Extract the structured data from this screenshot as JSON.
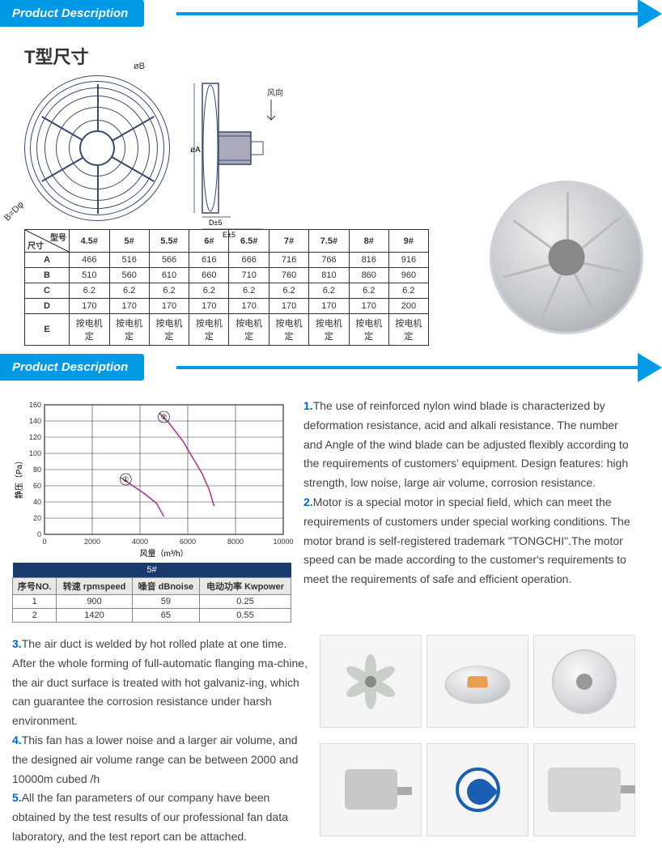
{
  "header_label": "Product Description",
  "t_size_title": "T型尺寸",
  "wind_direction_label": "风向",
  "dim_annotations": {
    "top": "øB",
    "right": "øA",
    "bottom_left": "B=Dφ",
    "d_label": "D±5",
    "e_label": "E±5"
  },
  "dim_table": {
    "corner_top": "型号",
    "corner_left": "尺寸",
    "cols": [
      "4.5#",
      "5#",
      "5.5#",
      "6#",
      "6.5#",
      "7#",
      "7.5#",
      "8#",
      "9#"
    ],
    "rows": [
      {
        "label": "A",
        "vals": [
          "466",
          "516",
          "566",
          "616",
          "666",
          "716",
          "766",
          "816",
          "916"
        ]
      },
      {
        "label": "B",
        "vals": [
          "510",
          "560",
          "610",
          "660",
          "710",
          "760",
          "810",
          "860",
          "960"
        ]
      },
      {
        "label": "C",
        "vals": [
          "6.2",
          "6.2",
          "6.2",
          "6.2",
          "6.2",
          "6.2",
          "6.2",
          "6.2",
          "6.2"
        ]
      },
      {
        "label": "D",
        "vals": [
          "170",
          "170",
          "170",
          "170",
          "170",
          "170",
          "170",
          "170",
          "200"
        ]
      },
      {
        "label": "E",
        "vals": [
          "按电机定",
          "按电机定",
          "按电机定",
          "按电机定",
          "按电机定",
          "按电机定",
          "按电机定",
          "按电机定",
          "按电机定"
        ]
      }
    ]
  },
  "chart": {
    "y_label": "静压（Pa）",
    "x_label": "风量（m³/h）",
    "y_ticks": [
      "0",
      "20",
      "40",
      "60",
      "80",
      "100",
      "120",
      "140",
      "160"
    ],
    "x_ticks": [
      "0",
      "2000",
      "4000",
      "6000",
      "8000",
      "10000"
    ],
    "ylim": [
      0,
      160
    ],
    "xlim": [
      0,
      10000
    ],
    "curve1_label": "①",
    "curve2_label": "②",
    "curve1": [
      [
        3200,
        70
      ],
      [
        3600,
        62
      ],
      [
        4200,
        50
      ],
      [
        4700,
        38
      ],
      [
        5000,
        22
      ]
    ],
    "curve2": [
      [
        4800,
        150
      ],
      [
        5200,
        138
      ],
      [
        5800,
        115
      ],
      [
        6200,
        95
      ],
      [
        6600,
        75
      ],
      [
        6900,
        55
      ],
      [
        7100,
        35
      ]
    ],
    "line_color": "#b03090",
    "grid_color": "#333333",
    "bg": "#ffffff"
  },
  "perf_table": {
    "title": "5#",
    "headers": [
      "序号NO.",
      "转速 rpmspeed",
      "噪音 dBnoise",
      "电动功率 Kwpower"
    ],
    "rows": [
      [
        "1",
        "900",
        "59",
        "0.25"
      ],
      [
        "2",
        "1420",
        "65",
        "0.55"
      ]
    ]
  },
  "desc": {
    "p1_num": "1.",
    "p1": "The use of reinforced nylon wind blade is characterized by deformation resistance, acid and alkali resistance. The number and Angle of the wind blade can be adjusted flexibly according to the requirements of customers' equipment. Design features: high strength, low noise, large air volume, corrosion resistance.",
    "p2_num": "2.",
    "p2": "Motor is a special motor in special field, which can meet the requirements of customers under special working conditions. The motor brand is self-registered trademark \"TONGCHI\".The motor speed can be made according to the customer's requirements to meet the requirements of safe and efficient operation.",
    "p3_num": "3.",
    "p3": "The air duct is welded by hot rolled plate at one time. After the whole forming of full-automatic flanging ma-chine, the air duct surface is treated with hot galvaniz-ing, which can guarantee the corrosion resistance under harsh environment.",
    "p4_num": "4.",
    "p4": "This fan has a lower noise and a larger air volume, and the designed air volume range can be between 2000 and 10000m cubed /h",
    "p5_num": "5.",
    "p5": "All the fan parameters of our company have been obtained by the test results of our professional fan data laboratory, and the test report can be attached."
  },
  "colors": {
    "accent": "#0099e5",
    "num": "#0066cc",
    "table_header": "#1a3a6e"
  }
}
